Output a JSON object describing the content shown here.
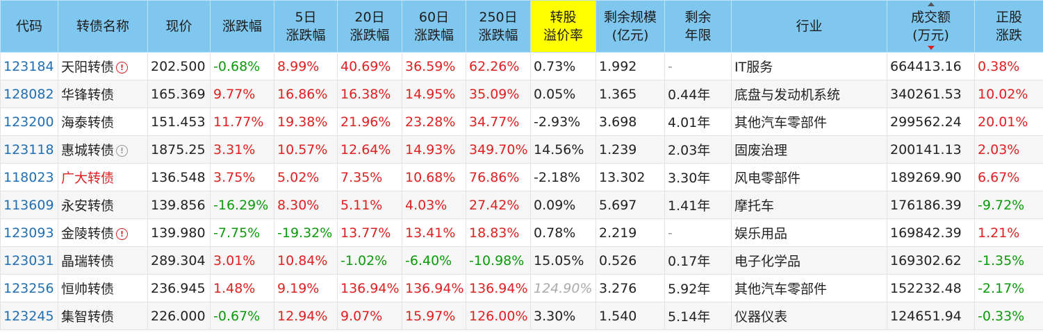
{
  "headers": {
    "code": "代码",
    "name": "转债名称",
    "price": "现价",
    "chg": "涨跌幅",
    "chg5_a": "5日",
    "chg5_b": "涨跌幅",
    "chg20_a": "20日",
    "chg20_b": "涨跌幅",
    "chg60_a": "60日",
    "chg60_b": "涨跌幅",
    "chg250_a": "250日",
    "chg250_b": "涨跌幅",
    "prem_a": "转股",
    "prem_b": "溢价率",
    "scale_a": "剩余规模",
    "scale_b": "(亿元)",
    "years_a": "剩余",
    "years_b": "年限",
    "industry": "行业",
    "amount_a": "成交额",
    "amount_b": "(万元)",
    "stock_a": "正股",
    "stock_b": "涨跌"
  },
  "icons": {
    "warn": "!"
  },
  "rows": [
    {
      "code": "123184",
      "name": "天阳转债",
      "price": "202.500",
      "chg": "-0.68%",
      "c5": "8.99%",
      "c20": "40.69%",
      "c60": "36.59%",
      "c250": "62.26%",
      "prem": "0.73%",
      "scale": "1.992",
      "years": "-",
      "industry": "IT服务",
      "amount": "664413.16",
      "stock": "0.38%"
    },
    {
      "code": "128082",
      "name": "华锋转债",
      "price": "165.369",
      "chg": "9.77%",
      "c5": "16.86%",
      "c20": "16.38%",
      "c60": "14.95%",
      "c250": "35.09%",
      "prem": "0.05%",
      "scale": "1.365",
      "years": "0.44年",
      "industry": "底盘与发动机系统",
      "amount": "340261.53",
      "stock": "10.02%"
    },
    {
      "code": "123200",
      "name": "海泰转债",
      "price": "151.453",
      "chg": "11.77%",
      "c5": "19.38%",
      "c20": "21.96%",
      "c60": "23.28%",
      "c250": "34.77%",
      "prem": "-2.93%",
      "scale": "3.698",
      "years": "4.01年",
      "industry": "其他汽车零部件",
      "amount": "299562.24",
      "stock": "20.01%"
    },
    {
      "code": "123118",
      "name": "惠城转债",
      "price": "1875.25",
      "chg": "3.31%",
      "c5": "10.57%",
      "c20": "12.64%",
      "c60": "14.93%",
      "c250": "349.70%",
      "prem": "14.56%",
      "scale": "1.239",
      "years": "2.03年",
      "industry": "固废治理",
      "amount": "200141.13",
      "stock": "2.03%"
    },
    {
      "code": "118023",
      "name": "广大转债",
      "price": "136.548",
      "chg": "3.75%",
      "c5": "5.02%",
      "c20": "7.35%",
      "c60": "10.68%",
      "c250": "76.86%",
      "prem": "-2.18%",
      "scale": "13.302",
      "years": "3.30年",
      "industry": "风电零部件",
      "amount": "189269.90",
      "stock": "6.67%"
    },
    {
      "code": "113609",
      "name": "永安转债",
      "price": "139.856",
      "chg": "-16.29%",
      "c5": "8.30%",
      "c20": "5.11%",
      "c60": "4.03%",
      "c250": "27.42%",
      "prem": "0.09%",
      "scale": "5.697",
      "years": "1.41年",
      "industry": "摩托车",
      "amount": "176186.39",
      "stock": "-9.72%"
    },
    {
      "code": "123093",
      "name": "金陵转债",
      "price": "139.980",
      "chg": "-7.75%",
      "c5": "-19.32%",
      "c20": "13.77%",
      "c60": "13.41%",
      "c250": "18.83%",
      "prem": "0.78%",
      "scale": "2.219",
      "years": "-",
      "industry": "娱乐用品",
      "amount": "169842.39",
      "stock": "1.21%"
    },
    {
      "code": "123031",
      "name": "晶瑞转债",
      "price": "289.304",
      "chg": "3.01%",
      "c5": "10.84%",
      "c20": "-1.02%",
      "c60": "-6.40%",
      "c250": "-10.98%",
      "prem": "15.05%",
      "scale": "0.526",
      "years": "0.17年",
      "industry": "电子化学品",
      "amount": "169302.62",
      "stock": "-1.35%"
    },
    {
      "code": "123256",
      "name": "恒帅转债",
      "price": "236.945",
      "chg": "1.48%",
      "c5": "9.19%",
      "c20": "136.94%",
      "c60": "136.94%",
      "c250": "136.94%",
      "prem": "124.90%",
      "scale": "3.276",
      "years": "5.92年",
      "industry": "其他汽车零部件",
      "amount": "152232.48",
      "stock": "-2.17%"
    },
    {
      "code": "123245",
      "name": "集智转债",
      "price": "226.000",
      "chg": "-0.67%",
      "c5": "12.94%",
      "c20": "9.07%",
      "c60": "15.97%",
      "c250": "126.00%",
      "prem": "3.30%",
      "scale": "1.540",
      "years": "5.14年",
      "industry": "仪器仪表",
      "amount": "124651.94",
      "stock": "-0.33%"
    }
  ]
}
